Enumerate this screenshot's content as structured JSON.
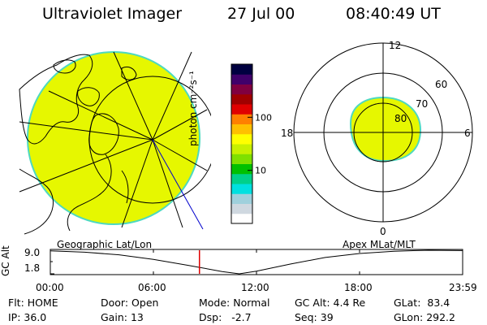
{
  "header": {
    "instrument": "Ultraviolet Imager",
    "date": "27 Jul 00",
    "time": "08:40:49 UT"
  },
  "colorbar": {
    "unit_label": "photon cm⁻²s⁻¹",
    "ticks": [
      {
        "value": 100,
        "label": "100"
      },
      {
        "value": 10,
        "label": "10"
      }
    ],
    "colors": [
      "#ffffff",
      "#cfd8e0",
      "#9fd0dc",
      "#00e0e0",
      "#00d08a",
      "#00c000",
      "#7fe000",
      "#c8f000",
      "#ffff00",
      "#ffc000",
      "#ff8000",
      "#e00000",
      "#a00000",
      "#800040",
      "#40006a",
      "#000040"
    ]
  },
  "polar_plot": {
    "mlt_labels": {
      "top": "12",
      "right": "6",
      "bottom": "0",
      "left": "18"
    },
    "lat_labels": [
      "60",
      "70",
      "80"
    ],
    "fill_color": "#e6f700"
  },
  "geo_plot": {
    "fill_color": "#e6f700"
  },
  "timeline": {
    "left_label": "Geographic Lat/Lon",
    "right_label": "Apex MLat/MLT",
    "axis_title": "GC Alt",
    "y_ticks": [
      "9.0",
      "1.8"
    ],
    "x_ticks": [
      "00:00",
      "06:00",
      "12:00",
      "18:00",
      "23:59"
    ],
    "alt_series": {
      "hours": [
        0,
        2,
        4,
        6,
        8,
        10,
        11,
        12,
        14,
        16,
        18,
        20,
        22,
        23.98
      ],
      "alt_re": [
        8.8,
        8.4,
        7.6,
        6.2,
        4.4,
        2.5,
        1.8,
        2.6,
        4.8,
        6.8,
        8.0,
        8.7,
        9.0,
        8.9
      ]
    },
    "current_hour": 8.68,
    "marker_color": "#e00000"
  },
  "status": {
    "flt_label": "Flt:",
    "flt_value": "HOME",
    "ip_label": "IP:",
    "ip_value": "36.0",
    "door_label": "Door:",
    "door_value": "Open",
    "gain_label": "Gain:",
    "gain_value": "13",
    "mode_label": "Mode:",
    "mode_value": "Normal",
    "dsp_label": "Dsp:",
    "dsp_value": "-2.7",
    "gcalt_label": "GC Alt:",
    "gcalt_value": "4.4 Re",
    "seq_label": "Seq:",
    "seq_value": "39",
    "glat_label": "GLat:",
    "glat_value": "83.4",
    "glon_label": "GLon:",
    "glon_value": "292.2"
  }
}
